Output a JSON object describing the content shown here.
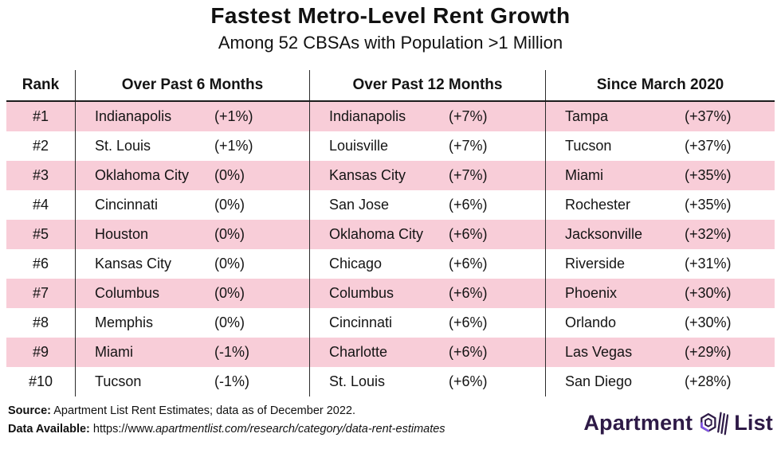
{
  "title": "Fastest Metro-Level Rent Growth",
  "subtitle": "Among 52 CBSAs with Population >1 Million",
  "table": {
    "headers": [
      "Rank",
      "Over Past 6 Months",
      "Over Past 12 Months",
      "Since March 2020"
    ],
    "rows": [
      {
        "rank": "#1",
        "cols": [
          {
            "city": "Indianapolis",
            "value": "(+1%)"
          },
          {
            "city": "Indianapolis",
            "value": "(+7%)"
          },
          {
            "city": "Tampa",
            "value": "(+37%)"
          }
        ]
      },
      {
        "rank": "#2",
        "cols": [
          {
            "city": "St. Louis",
            "value": "(+1%)"
          },
          {
            "city": "Louisville",
            "value": "(+7%)"
          },
          {
            "city": "Tucson",
            "value": "(+37%)"
          }
        ]
      },
      {
        "rank": "#3",
        "cols": [
          {
            "city": "Oklahoma City",
            "value": "(0%)"
          },
          {
            "city": "Kansas City",
            "value": "(+7%)"
          },
          {
            "city": "Miami",
            "value": "(+35%)"
          }
        ]
      },
      {
        "rank": "#4",
        "cols": [
          {
            "city": "Cincinnati",
            "value": "(0%)"
          },
          {
            "city": "San Jose",
            "value": "(+6%)"
          },
          {
            "city": "Rochester",
            "value": "(+35%)"
          }
        ]
      },
      {
        "rank": "#5",
        "cols": [
          {
            "city": "Houston",
            "value": "(0%)"
          },
          {
            "city": "Oklahoma City",
            "value": "(+6%)"
          },
          {
            "city": "Jacksonville",
            "value": "(+32%)"
          }
        ]
      },
      {
        "rank": "#6",
        "cols": [
          {
            "city": "Kansas City",
            "value": "(0%)"
          },
          {
            "city": "Chicago",
            "value": "(+6%)"
          },
          {
            "city": "Riverside",
            "value": "(+31%)"
          }
        ]
      },
      {
        "rank": "#7",
        "cols": [
          {
            "city": "Columbus",
            "value": "(0%)"
          },
          {
            "city": "Columbus",
            "value": "(+6%)"
          },
          {
            "city": "Phoenix",
            "value": "(+30%)"
          }
        ]
      },
      {
        "rank": "#8",
        "cols": [
          {
            "city": "Memphis",
            "value": "(0%)"
          },
          {
            "city": "Cincinnati",
            "value": "(+6%)"
          },
          {
            "city": "Orlando",
            "value": "(+30%)"
          }
        ]
      },
      {
        "rank": "#9",
        "cols": [
          {
            "city": "Miami",
            "value": "(-1%)"
          },
          {
            "city": "Charlotte",
            "value": "(+6%)"
          },
          {
            "city": "Las Vegas",
            "value": "(+29%)"
          }
        ]
      },
      {
        "rank": "#10",
        "cols": [
          {
            "city": "Tucson",
            "value": "(-1%)"
          },
          {
            "city": "St. Louis",
            "value": "(+6%)"
          },
          {
            "city": "San Diego",
            "value": "(+28%)"
          }
        ]
      }
    ]
  },
  "chart_data": {
    "type": "table",
    "title": "Fastest Metro-Level Rent Growth",
    "subtitle": "Among 52 CBSAs with Population >1 Million",
    "columns": [
      "Rank",
      "Over Past 6 Months",
      "Over Past 12 Months",
      "Since March 2020"
    ],
    "ranks": [
      "#1",
      "#2",
      "#3",
      "#4",
      "#5",
      "#6",
      "#7",
      "#8",
      "#9",
      "#10"
    ],
    "series": [
      {
        "name": "Over Past 6 Months",
        "cities": [
          "Indianapolis",
          "St. Louis",
          "Oklahoma City",
          "Cincinnati",
          "Houston",
          "Kansas City",
          "Columbus",
          "Memphis",
          "Miami",
          "Tucson"
        ],
        "values_pct": [
          1,
          1,
          0,
          0,
          0,
          0,
          0,
          0,
          -1,
          -1
        ]
      },
      {
        "name": "Over Past 12 Months",
        "cities": [
          "Indianapolis",
          "Louisville",
          "Kansas City",
          "San Jose",
          "Oklahoma City",
          "Chicago",
          "Columbus",
          "Cincinnati",
          "Charlotte",
          "St. Louis"
        ],
        "values_pct": [
          7,
          7,
          7,
          6,
          6,
          6,
          6,
          6,
          6,
          6
        ]
      },
      {
        "name": "Since March 2020",
        "cities": [
          "Tampa",
          "Tucson",
          "Miami",
          "Rochester",
          "Jacksonville",
          "Riverside",
          "Phoenix",
          "Orlando",
          "Las Vegas",
          "San Diego"
        ],
        "values_pct": [
          37,
          37,
          35,
          35,
          32,
          31,
          30,
          30,
          29,
          28
        ]
      }
    ],
    "row_stripe_colors": [
      "#F8CDD8",
      "#FFFFFF"
    ]
  },
  "footer": {
    "source_label": "Source:",
    "source_text": " Apartment List Rent Estimates; data as of December 2022.",
    "data_label": "Data Available:",
    "url_prefix": " https://www.",
    "url_italic": "apartmentlist.com/research/category/data-rent-estimates"
  },
  "logo": {
    "word1": "Apartment",
    "word2": "List",
    "navy": "#2E1A47",
    "purple": "#8456EC"
  },
  "colors": {
    "stripe_pink": "#F8CDD8",
    "line_dark": "#1c1c1c",
    "text": "#141414"
  }
}
